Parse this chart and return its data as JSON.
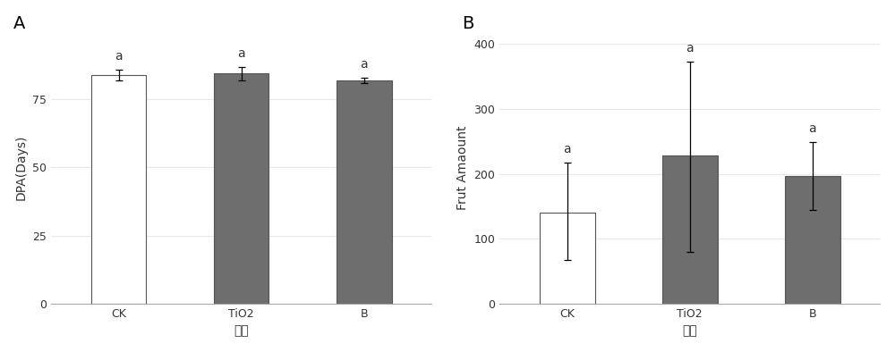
{
  "panel_A": {
    "label": "A",
    "categories": [
      "CK",
      "TiO2",
      "B"
    ],
    "values": [
      84.0,
      84.5,
      82.0
    ],
    "errors_lower": [
      2.0,
      2.5,
      1.0
    ],
    "errors_upper": [
      2.0,
      2.5,
      1.0
    ],
    "bar_colors": [
      "#ffffff",
      "#6e6e6e",
      "#6e6e6e"
    ],
    "bar_edgecolors": [
      "#555555",
      "#555555",
      "#555555"
    ],
    "ylabel": "DPA(Days)",
    "xlabel": "处理",
    "ylim": [
      0,
      100
    ],
    "yticks": [
      0,
      25,
      50,
      75
    ],
    "sig_labels": [
      "a",
      "a",
      "a"
    ]
  },
  "panel_B": {
    "label": "B",
    "categories": [
      "CK",
      "TiO2",
      "B"
    ],
    "values": [
      140.0,
      228.0,
      197.0
    ],
    "errors_lower": [
      73.0,
      148.0,
      52.0
    ],
    "errors_upper": [
      78.0,
      145.0,
      52.0
    ],
    "bar_colors": [
      "#ffffff",
      "#6e6e6e",
      "#6e6e6e"
    ],
    "bar_edgecolors": [
      "#555555",
      "#555555",
      "#555555"
    ],
    "ylabel": "Frut Amaount",
    "xlabel": "处理",
    "ylim": [
      0,
      420
    ],
    "yticks": [
      0,
      100,
      200,
      300,
      400
    ],
    "sig_labels": [
      "a",
      "a",
      "a"
    ]
  },
  "background_color": "#ffffff",
  "fig_background_color": "#ffffff",
  "grid_color": "#e8e8e8",
  "bar_width": 0.45,
  "capsize": 3,
  "fontsize_axis_label": 10,
  "fontsize_tick": 9,
  "fontsize_sig": 10,
  "fontsize_panel_label": 14
}
